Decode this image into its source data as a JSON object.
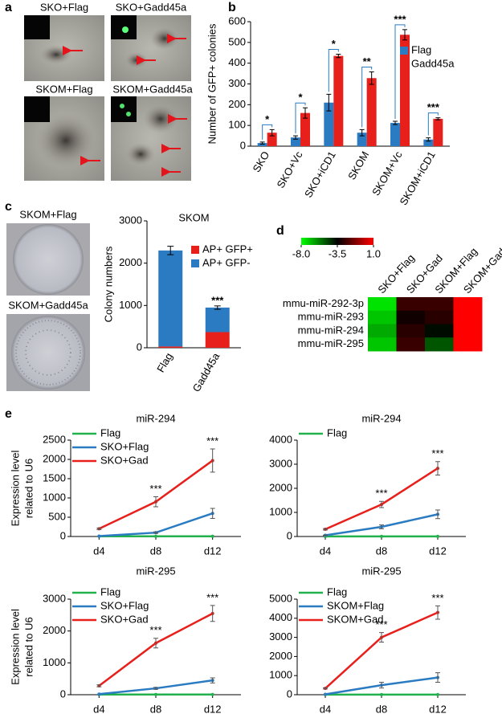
{
  "panel_labels": [
    "a",
    "b",
    "c",
    "d",
    "e"
  ],
  "images": {
    "a": [
      "SKO+Flag",
      "SKO+Gadd45a",
      "SKOM+Flag",
      "SKOM+Gadd45a"
    ],
    "c": [
      "SKOM+Flag",
      "SKOM+Gadd45a"
    ]
  },
  "chart_data": [
    {
      "type": "bar",
      "ylabel": "Number of GFP+ colonies",
      "categories": [
        "SKO",
        "SKO+Vc",
        "SKO+iCD1",
        "SKOM",
        "SKOM+Vc",
        "SKOM+iCD1"
      ],
      "series": [
        {
          "name": "Flag",
          "color": "#2a7bc2",
          "values": [
            15,
            42,
            210,
            65,
            112,
            32
          ],
          "errors": [
            5,
            8,
            40,
            15,
            8,
            8
          ]
        },
        {
          "name": "Gadd45a",
          "color": "#e8201c",
          "values": [
            65,
            160,
            435,
            328,
            537,
            132
          ],
          "errors": [
            15,
            25,
            8,
            30,
            25,
            5
          ]
        }
      ],
      "significance": [
        "*",
        "*",
        "*",
        "**",
        "***",
        "***"
      ],
      "ylim": [
        0,
        600
      ],
      "yticks": [
        0,
        100,
        200,
        300,
        400,
        500,
        600
      ],
      "legend": "upper right"
    },
    {
      "type": "bar",
      "stacked": true,
      "title": "SKOM",
      "ylabel": "Colony numbers",
      "categories": [
        "Flag",
        "Gadd45a"
      ],
      "series": [
        {
          "name": "AP+ GFP+",
          "color": "#e8201c",
          "values": [
            30,
            370
          ],
          "significance": [
            null,
            "***"
          ]
        },
        {
          "name": "AP+ GFP-",
          "color": "#2a7bc2",
          "values": [
            2270,
            580
          ],
          "errors": [
            100,
            40
          ],
          "significance": [
            null,
            "***"
          ]
        }
      ],
      "ylim": [
        0,
        3000
      ],
      "yticks": [
        0,
        1000,
        2000,
        3000
      ],
      "legend": "upper right"
    },
    {
      "type": "heatmap",
      "rows": [
        "mmu-miR-292-3p",
        "mmu-miR-293",
        "mmu-miR-294",
        "mmu-miR-295"
      ],
      "columns": [
        "SKO+Flag",
        "SKO+Gad",
        "SKOM+Flag",
        "SKOM+Gad"
      ],
      "values": [
        [
          -7.5,
          -2.5,
          -2.5,
          1
        ],
        [
          -7,
          -3.2,
          -2.8,
          1
        ],
        [
          -6.5,
          -2.8,
          -3.7,
          1
        ],
        [
          -7,
          -2.5,
          -5,
          1
        ]
      ],
      "zlim": [
        -8,
        1
      ],
      "zticks": [
        {
          "value": -8,
          "label": "-8.0"
        },
        -3.5,
        {
          "value": 1,
          "label": "1.0"
        }
      ],
      "colors": [
        "#00ff00",
        "#000000",
        "#ff0000"
      ]
    },
    {
      "type": "line",
      "title": "miR-294",
      "ylabel": [
        "Expression level",
        "related to U6"
      ],
      "categories": [
        "d4",
        "d8",
        "d12"
      ],
      "series": [
        {
          "name": "Flag",
          "color": "#22b14c",
          "values": [
            5,
            5,
            5
          ]
        },
        {
          "name": "SKO+Flag",
          "color": "#2a7bc2",
          "values": [
            10,
            100,
            600
          ],
          "errors": [
            0,
            20,
            130
          ]
        },
        {
          "name": "SKO+Gad",
          "color": "#e8201c",
          "values": [
            200,
            900,
            1970
          ],
          "errors": [
            20,
            130,
            300
          ],
          "significance": [
            null,
            "***",
            "***"
          ]
        }
      ],
      "ylim": [
        0,
        2500
      ],
      "yticks": [
        0,
        500,
        1000,
        1500,
        2000,
        2500
      ],
      "legend": "upper left"
    },
    {
      "type": "line",
      "title": "miR-294",
      "categories": [
        "d4",
        "d8",
        "d12"
      ],
      "series": [
        {
          "name": "Flag",
          "color": "#22b14c",
          "values": [
            5,
            5,
            5
          ]
        },
        {
          "color": "#2a7bc2",
          "values": [
            50,
            400,
            920
          ],
          "errors": [
            10,
            80,
            180
          ]
        },
        {
          "color": "#e8201c",
          "values": [
            300,
            1330,
            2830
          ],
          "errors": [
            30,
            130,
            280
          ],
          "significance": [
            null,
            "***",
            "***"
          ]
        }
      ],
      "ylim": [
        0,
        4000
      ],
      "yticks": [
        0,
        1000,
        2000,
        3000,
        4000
      ],
      "legend": "upper left"
    },
    {
      "type": "line",
      "title": "miR-295",
      "ylabel": [
        "Expression level",
        "related to U6"
      ],
      "categories": [
        "d4",
        "d8",
        "d12"
      ],
      "series": [
        {
          "name": "Flag",
          "color": "#22b14c",
          "values": [
            5,
            5,
            5
          ]
        },
        {
          "name": "SKO+Flag",
          "color": "#2a7bc2",
          "values": [
            20,
            200,
            450
          ],
          "errors": [
            0,
            30,
            80
          ]
        },
        {
          "name": "SKO+Gad",
          "color": "#e8201c",
          "values": [
            280,
            1620,
            2550
          ],
          "errors": [
            30,
            150,
            250
          ],
          "significance": [
            null,
            "***",
            "***"
          ]
        }
      ],
      "ylim": [
        0,
        3000
      ],
      "yticks": [
        0,
        1000,
        2000,
        3000
      ],
      "legend": "upper left"
    },
    {
      "type": "line",
      "title": "miR-295",
      "categories": [
        "d4",
        "d8",
        "d12"
      ],
      "series": [
        {
          "name": "Flag",
          "color": "#22b14c",
          "values": [
            5,
            5,
            5
          ]
        },
        {
          "name": "SKOM+Flag",
          "color": "#2a7bc2",
          "values": [
            20,
            500,
            900
          ],
          "errors": [
            0,
            150,
            250
          ]
        },
        {
          "name": "SKOM+Gad",
          "color": "#e8201c",
          "values": [
            330,
            3000,
            4300
          ],
          "errors": [
            30,
            250,
            350
          ],
          "significance": [
            null,
            "***",
            "***"
          ]
        }
      ],
      "ylim": [
        0,
        5000
      ],
      "yticks": [
        0,
        1000,
        2000,
        3000,
        4000,
        5000
      ],
      "legend": "upper left"
    }
  ]
}
